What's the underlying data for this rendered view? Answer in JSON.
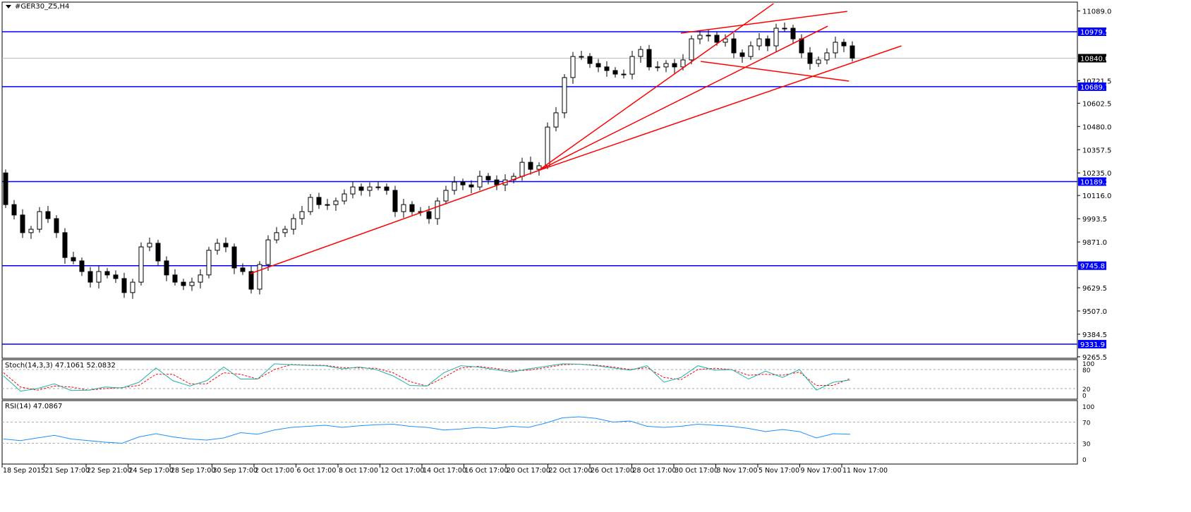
{
  "window": {
    "title": "#GER30_Z5,H4"
  },
  "chart_data": [
    {
      "type": "candlestick",
      "symbol": "#GER30_Z5",
      "timeframe": "H4",
      "ylim": [
        9265.5,
        11089.0
      ],
      "y_ticks": [
        "11089.0",
        "10721.5",
        "10602.5",
        "10480.0",
        "10357.5",
        "10235.0",
        "10116.0",
        "9993.5",
        "9871.0",
        "9629.5",
        "9507.0",
        "9384.5",
        "9265.5"
      ],
      "x_ticks": [
        "18 Sep 2015",
        "21 Sep 17:00",
        "22 Sep 21:00",
        "24 Sep 17:00",
        "28 Sep 17:00",
        "30 Sep 17:00",
        "2 Oct 17:00",
        "6 Oct 17:00",
        "8 Oct 17:00",
        "12 Oct 17:00",
        "14 Oct 17:00",
        "16 Oct 17:00",
        "20 Oct 17:00",
        "22 Oct 17:00",
        "26 Oct 17:00",
        "28 Oct 17:00",
        "30 Oct 17:00",
        "3 Nov 17:00",
        "5 Nov 17:00",
        "9 Nov 17:00",
        "11 Nov 17:00"
      ],
      "closes": [
        10068,
        10013,
        9920,
        9938,
        10031,
        9994,
        9920,
        9789,
        9771,
        9715,
        9659,
        9715,
        9697,
        9678,
        9604,
        9659,
        9845,
        9864,
        9771,
        9697,
        9659,
        9641,
        9659,
        9697,
        9827,
        9864,
        9845,
        9734,
        9715,
        9622,
        9752,
        9882,
        9920,
        9938,
        9994,
        10031,
        10106,
        10068,
        10068,
        10087,
        10124,
        10161,
        10143,
        10161,
        10161,
        10143,
        10031,
        10068,
        10031,
        10031,
        9994,
        10087,
        10143,
        10187,
        10172,
        10161,
        10217,
        10198,
        10172,
        10198,
        10217,
        10291,
        10254,
        10273,
        10477,
        10552,
        10738,
        10849,
        10849,
        10812,
        10794,
        10775,
        10756,
        10756,
        10849,
        10886,
        10794,
        10794,
        10812,
        10794,
        10831,
        10942,
        10961,
        10961,
        10924,
        10942,
        10868,
        10849,
        10905,
        10942,
        10905,
        10998,
        10998,
        10942,
        10868,
        10812,
        10831,
        10868,
        10924,
        10905,
        10840
      ],
      "first_open": 10235,
      "current_price": {
        "label": "10840.0",
        "value": 10840.0,
        "color": "#c0c0c0"
      },
      "horizontal_levels": [
        {
          "label": "10979.5",
          "value": 10979.5
        },
        {
          "label": "10689.7",
          "value": 10689.7
        },
        {
          "label": "10189.2",
          "value": 10189.2
        },
        {
          "label": "9745.8",
          "value": 9745.8
        },
        {
          "label": "9331.9",
          "value": 9331.9
        }
      ],
      "level_color": "#0000ff",
      "trendline_color": "#ff0000",
      "trendlines": [
        {
          "from": [
            28.9,
            9704
          ],
          "to": [
            62.9,
            10247
          ]
        },
        {
          "from": [
            62.9,
            10247
          ],
          "to": [
            90.7,
            11128
          ]
        },
        {
          "from": [
            62.9,
            10247
          ],
          "to": [
            97.1,
            11009
          ]
        },
        {
          "from": [
            62.9,
            10247
          ],
          "to": [
            105.8,
            10905
          ]
        },
        {
          "from": [
            79.75,
            10972
          ],
          "to": [
            99.4,
            11087
          ]
        },
        {
          "from": [
            82.1,
            10823
          ],
          "to": [
            99.6,
            10719
          ]
        }
      ]
    },
    {
      "type": "line",
      "label": "Stoch(14,3,3) 47.1061 52.0832",
      "ylim": [
        0,
        100
      ],
      "levels": [
        20,
        80
      ],
      "y_ticks": [
        "100",
        "80",
        "20",
        "0"
      ],
      "main_color": "#20b2aa",
      "signal_color": "#ff0000",
      "main": [
        60,
        12,
        20,
        35,
        14,
        15,
        25,
        22,
        40,
        85,
        45,
        28,
        45,
        88,
        50,
        50,
        98,
        95,
        93,
        92,
        82,
        88,
        80,
        60,
        30,
        28,
        70,
        92,
        88,
        80,
        72,
        82,
        90,
        98,
        97,
        92,
        85,
        78,
        92,
        40,
        55,
        92,
        78,
        80,
        50,
        75,
        55,
        80,
        15,
        40,
        47
      ],
      "signal": [
        70,
        25,
        15,
        28,
        25,
        15,
        20,
        23,
        30,
        65,
        65,
        35,
        35,
        70,
        65,
        50,
        80,
        96,
        94,
        93,
        86,
        85,
        84,
        70,
        42,
        28,
        55,
        85,
        90,
        84,
        76,
        78,
        86,
        95,
        97,
        94,
        88,
        80,
        86,
        55,
        48,
        80,
        84,
        80,
        62,
        65,
        62,
        72,
        30,
        30,
        52
      ]
    },
    {
      "type": "line",
      "label": "RSI(14) 47.0867",
      "ylim": [
        0,
        100
      ],
      "levels": [
        30,
        70
      ],
      "y_ticks": [
        "100",
        "70",
        "30",
        "0"
      ],
      "color": "#1e90ff",
      "values": [
        38,
        35,
        40,
        45,
        38,
        35,
        32,
        30,
        42,
        48,
        42,
        38,
        36,
        40,
        50,
        47,
        55,
        60,
        62,
        64,
        60,
        63,
        65,
        66,
        62,
        60,
        55,
        57,
        60,
        58,
        62,
        60,
        68,
        78,
        80,
        77,
        70,
        72,
        62,
        60,
        62,
        66,
        64,
        62,
        58,
        52,
        56,
        52,
        40,
        48,
        47
      ]
    }
  ]
}
